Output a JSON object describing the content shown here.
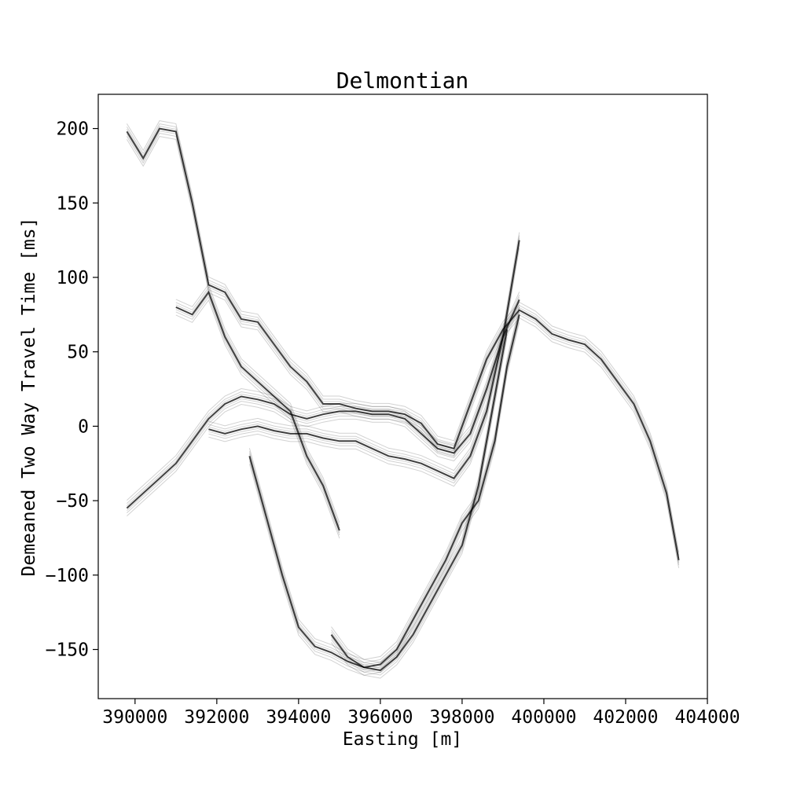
{
  "chart_data": {
    "type": "line",
    "title": "Delmontian",
    "xlabel": "Easting [m]",
    "ylabel": "Demeaned Two Way Travel Time [ms]",
    "xlim": [
      389100,
      404000
    ],
    "ylim": [
      -183,
      223
    ],
    "x_ticks": [
      390000,
      392000,
      394000,
      396000,
      398000,
      400000,
      402000,
      404000
    ],
    "x_tick_labels": [
      "390000",
      "392000",
      "394000",
      "396000",
      "398000",
      "400000",
      "402000",
      "404000"
    ],
    "y_ticks": [
      -150,
      -100,
      -50,
      0,
      50,
      100,
      150,
      200
    ],
    "y_tick_labels": [
      "−150",
      "−100",
      "−50",
      "0",
      "50",
      "100",
      "150",
      "200"
    ],
    "grid": false,
    "line_color": "#000000",
    "series": [
      {
        "x": [
          389800,
          390200,
          390600,
          391000,
          391400,
          391800,
          392200,
          392600,
          393000,
          393400,
          393800,
          394200,
          394600,
          395000,
          395400,
          395800,
          396200,
          396600,
          397000,
          397400,
          397800,
          398200,
          398600,
          399000,
          399400,
          399800,
          400200,
          400600,
          401000,
          401400,
          401800,
          402200,
          402600,
          403000,
          403300
        ],
        "values": [
          198,
          180,
          200,
          198,
          150,
          95,
          90,
          72,
          70,
          55,
          40,
          30,
          15,
          15,
          12,
          10,
          10,
          8,
          2,
          -12,
          -15,
          15,
          45,
          65,
          78,
          72,
          62,
          58,
          55,
          45,
          30,
          15,
          -10,
          -45,
          -90
        ]
      },
      {
        "x": [
          389800,
          390200,
          390600,
          391000,
          391400,
          391800,
          392200,
          392600,
          393000,
          393400,
          393800,
          394200,
          394600,
          395000,
          395400,
          395800,
          396200,
          396600,
          397000,
          397400,
          397800,
          398200,
          398600,
          399000,
          399400
        ],
        "values": [
          -55,
          -45,
          -35,
          -25,
          -10,
          5,
          15,
          20,
          18,
          15,
          8,
          5,
          8,
          10,
          10,
          8,
          8,
          5,
          -5,
          -15,
          -18,
          -5,
          25,
          60,
          85
        ]
      },
      {
        "x": [
          391800,
          392200,
          392600,
          393000,
          393400,
          393800,
          394200,
          394600,
          395000,
          395400,
          395800,
          396200,
          396600,
          397000,
          397400,
          397800,
          398200,
          398600,
          399000,
          399400
        ],
        "values": [
          -2,
          -5,
          -2,
          0,
          -3,
          -5,
          -5,
          -8,
          -10,
          -10,
          -15,
          -20,
          -22,
          -25,
          -30,
          -35,
          -20,
          10,
          60,
          125
        ]
      },
      {
        "x": [
          392800,
          393200,
          393600,
          394000,
          394400,
          394800,
          395200,
          395600,
          396000,
          396400,
          396800,
          397200,
          397600,
          398000,
          398400,
          398800,
          399100,
          399400
        ],
        "values": [
          -20,
          -60,
          -100,
          -135,
          -148,
          -152,
          -158,
          -162,
          -160,
          -150,
          -130,
          -110,
          -90,
          -65,
          -50,
          -10,
          40,
          75
        ]
      },
      {
        "x": [
          394800,
          395200,
          395600,
          396000,
          396400,
          396800,
          397200,
          397600,
          398000,
          398400,
          398800,
          399100
        ],
        "values": [
          -140,
          -155,
          -162,
          -164,
          -155,
          -140,
          -120,
          -100,
          -80,
          -40,
          20,
          65
        ]
      },
      {
        "x": [
          391000,
          391400,
          391800,
          392200,
          392600,
          393000,
          393400,
          393800,
          394200,
          394600,
          395000
        ],
        "values": [
          80,
          75,
          90,
          60,
          40,
          30,
          20,
          10,
          -20,
          -40,
          -70
        ]
      }
    ]
  }
}
